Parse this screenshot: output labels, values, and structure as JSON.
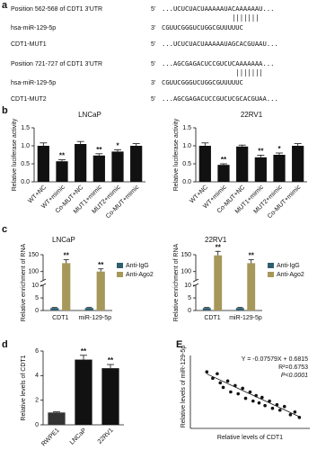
{
  "panel_labels": [
    "a",
    "b",
    "c",
    "d",
    "E"
  ],
  "sequence_panel": {
    "rows": [
      {
        "label": "Position 562-568 of CDT1 3'UTR",
        "end": "5'",
        "seq": "...UCUCUACUAAAAAUACAAAAAAU..."
      },
      {
        "label": "hsa-miR-129-5p",
        "end": "3'",
        "seq": "CGUUCGGGUCUGGCGUUUUUC"
      },
      {
        "label": "CDT1-MUT1",
        "end": "5'",
        "seq": "...UCUCUACUAAAAAUAGCACGUAAU..."
      },
      {
        "label": "Position 721-727 of CDT1 3'UTR",
        "end": "5'",
        "seq": "...AGCGAGACUCCGUCUCAAAAAAA..."
      },
      {
        "label": "hsa-miR-129-5p",
        "end": "3'",
        "seq": "CGUUCGGGUCUGGCGUUUUUC"
      },
      {
        "label": "CDT1-MUT2",
        "end": "5'",
        "seq": "...AGCGAGACUCCGUCUCGCACGUAA..."
      }
    ]
  },
  "chart_data": [
    {
      "type": "bar",
      "title": "LNCaP",
      "ylabel": "Relative luciferase activity",
      "categories": [
        "WT+NC",
        "WT+mimic",
        "Co-MUT+NC",
        "MUT1+mimic",
        "MUT2+mimic",
        "Co-MUT+mimic"
      ],
      "values": [
        1.0,
        0.57,
        1.05,
        0.73,
        0.84,
        1.0
      ],
      "errors": [
        0.08,
        0.04,
        0.07,
        0.05,
        0.05,
        0.06
      ],
      "annotations": [
        null,
        "**",
        null,
        "**",
        "*",
        null
      ],
      "color": "#111111",
      "ylim": [
        0,
        1.5
      ],
      "yticks": [
        {
          "value": 0,
          "label": "0.0"
        },
        {
          "value": 0.5,
          "label": "0.5"
        },
        {
          "value": 1,
          "label": "1.0"
        },
        {
          "value": 1.5,
          "label": "1.5"
        }
      ]
    },
    {
      "type": "bar",
      "title": "22RV1",
      "ylabel": "Relative luciferase activity",
      "categories": [
        "WT+NC",
        "WT+mimic",
        "Co-MUT+NC",
        "MUT1+mimic",
        "MUT2+mimic",
        "Co-MUT+mimic"
      ],
      "values": [
        1.0,
        0.47,
        0.98,
        0.68,
        0.75,
        1.0
      ],
      "errors": [
        0.08,
        0.03,
        0.04,
        0.06,
        0.05,
        0.06
      ],
      "annotations": [
        null,
        "**",
        null,
        "**",
        "*",
        null
      ],
      "color": "#111111",
      "ylim": [
        0,
        1.5
      ],
      "yticks": [
        {
          "value": 0,
          "label": "0.0"
        },
        {
          "value": 0.5,
          "label": "0.5"
        },
        {
          "value": 1,
          "label": "1.0"
        },
        {
          "value": 1.5,
          "label": "1.5"
        }
      ]
    },
    {
      "type": "grouped_bar",
      "title": "LNCaP",
      "ylabel": "Relative enrichment of RNA",
      "categories": [
        "CDT1",
        "miR-129-5p"
      ],
      "series": [
        {
          "name": "Anti-IgG",
          "color": "#2f5f6f",
          "values": [
            1,
            1
          ],
          "errors": [
            0.2,
            0.2
          ],
          "annotations": [
            null,
            null
          ]
        },
        {
          "name": "Anti-Ago2",
          "color": "#a6985a",
          "values": [
            125,
            100
          ],
          "errors": [
            10,
            8
          ],
          "annotations": [
            "**",
            "**"
          ]
        }
      ],
      "ylim": [
        0,
        150
      ],
      "axis_break": [
        10,
        75
      ],
      "yticks": [
        0,
        5,
        10,
        100,
        150
      ]
    },
    {
      "type": "grouped_bar",
      "title": "22RV1",
      "ylabel": "Relative enrichment of RNA",
      "categories": [
        "CDT1",
        "miR-129-5p"
      ],
      "series": [
        {
          "name": "Anti-IgG",
          "color": "#2f5f6f",
          "values": [
            1,
            1
          ],
          "errors": [
            0.2,
            0.2
          ],
          "annotations": [
            null,
            null
          ]
        },
        {
          "name": "Anti-Ago2",
          "color": "#a6985a",
          "values": [
            148,
            125
          ],
          "errors": [
            12,
            10
          ],
          "annotations": [
            "**",
            "**"
          ]
        }
      ],
      "ylim": [
        0,
        150
      ],
      "axis_break": [
        10,
        75
      ],
      "yticks": [
        0,
        5,
        10,
        100,
        150
      ]
    },
    {
      "type": "bar",
      "ylabel": "Relative levels of CDT1",
      "categories": [
        "RWPE1",
        "LNCaP",
        "22RV1"
      ],
      "values": [
        1.0,
        5.3,
        4.6
      ],
      "errors": [
        0.05,
        0.35,
        0.3
      ],
      "annotations": [
        null,
        "**",
        "**"
      ],
      "colors": [
        "#333333",
        "#111111",
        "#111111"
      ],
      "ylim": [
        0,
        6
      ],
      "yticks": [
        0,
        2,
        4,
        6
      ]
    },
    {
      "type": "scatter",
      "xlabel": "Relative levels of CDT1",
      "ylabel": "Relative levels of miR-129-5p",
      "annotations": [
        "Y = -0.07579X + 0.6815",
        "R²=0.6753",
        "P<0.0001"
      ],
      "fit": {
        "slope": -0.07579,
        "intercept": 0.6815
      },
      "x": [
        1.1,
        1.5,
        1.8,
        2.0,
        2.2,
        2.5,
        2.7,
        3.0,
        3.2,
        3.5,
        3.7,
        4.0,
        4.2,
        4.4,
        4.6,
        4.8,
        5.0,
        5.3,
        5.5,
        5.8,
        6.0,
        6.3,
        6.7,
        7.0,
        7.3
      ],
      "values": [
        0.62,
        0.55,
        0.6,
        0.5,
        0.45,
        0.52,
        0.4,
        0.47,
        0.38,
        0.44,
        0.33,
        0.4,
        0.3,
        0.36,
        0.28,
        0.34,
        0.25,
        0.3,
        0.22,
        0.26,
        0.2,
        0.24,
        0.15,
        0.18,
        0.12
      ],
      "color": "#111111",
      "xlim": [
        0,
        8
      ],
      "ylim": [
        0,
        0.8
      ]
    }
  ]
}
